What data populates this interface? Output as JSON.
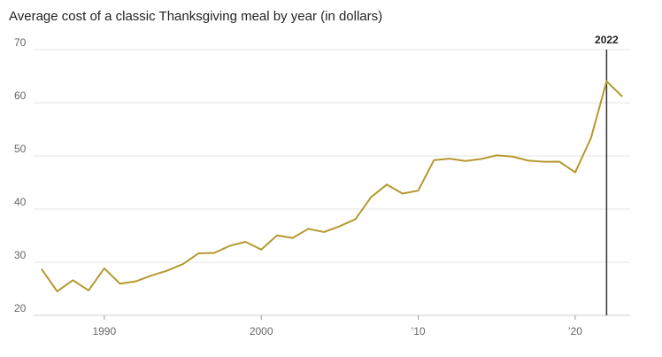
{
  "chart_data": {
    "type": "line",
    "title": "Average cost of a classic Thanksgiving meal by year (in dollars)",
    "x": [
      1986,
      1987,
      1988,
      1989,
      1990,
      1991,
      1992,
      1993,
      1994,
      1995,
      1996,
      1997,
      1998,
      1999,
      2000,
      2001,
      2002,
      2003,
      2004,
      2005,
      2006,
      2007,
      2008,
      2009,
      2010,
      2011,
      2012,
      2013,
      2014,
      2015,
      2016,
      2017,
      2018,
      2019,
      2020,
      2021,
      2022,
      2023
    ],
    "series": [
      {
        "color": "#b5992f",
        "values": [
          28.74,
          24.51,
          26.61,
          24.7,
          28.85,
          25.95,
          26.39,
          27.49,
          28.4,
          29.64,
          31.66,
          31.75,
          33.09,
          33.83,
          32.37,
          35.04,
          34.56,
          36.28,
          35.68,
          36.78,
          38.1,
          42.26,
          44.61,
          42.91,
          43.47,
          49.2,
          49.48,
          49.04,
          49.41,
          50.11,
          49.87,
          49.12,
          48.9,
          48.91,
          46.9,
          53.31,
          64.05,
          61.17
        ]
      }
    ],
    "xlim": [
      1985.5,
      2023.5
    ],
    "xticks": [
      1990,
      2000,
      {
        "value": 2010,
        "label": "’10"
      },
      {
        "value": 2020,
        "label": "’20"
      }
    ],
    "ylim": [
      20,
      70
    ],
    "yticks": [
      20,
      30,
      40,
      50,
      60,
      70
    ],
    "grid": true,
    "annotations": [
      {
        "x": 2022,
        "label": "2022"
      }
    ]
  }
}
